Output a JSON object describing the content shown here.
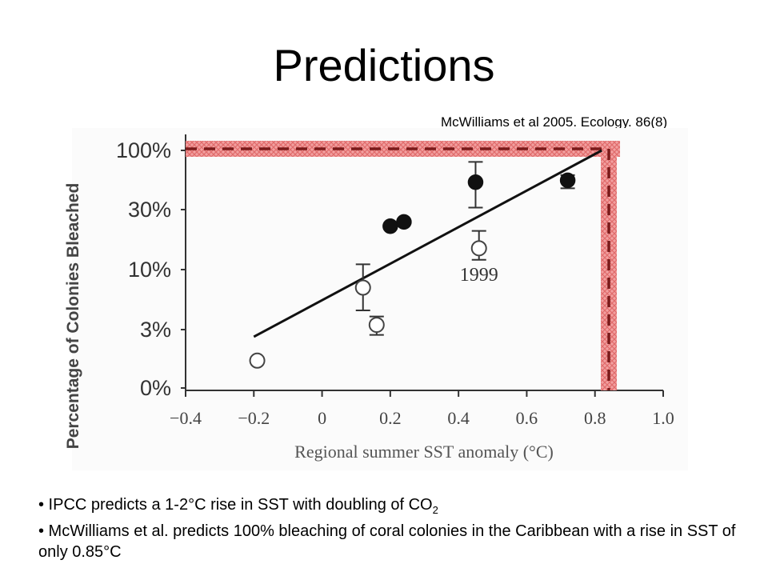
{
  "slide": {
    "title": "Predictions",
    "citation": "McWilliams et al 2005. Ecology. 86(8)",
    "bullets": [
      {
        "text": "• IPCC predicts a 1-2°C rise in SST with doubling of CO",
        "sub": "2"
      },
      {
        "text": "• McWilliams et al. predicts 100% bleaching of coral colonies in the Caribbean with a rise in SST of only 0.85°C"
      }
    ]
  },
  "chart_data": {
    "type": "scatter",
    "xlabel": "Regional summer SST anomaly (°C)",
    "ylabel": "Percentage of Colonies Bleached",
    "xlim": [
      -0.4,
      1.0
    ],
    "x_ticks": [
      -0.4,
      -0.2,
      0,
      0.2,
      0.4,
      0.6,
      0.8,
      1.0
    ],
    "x_tick_labels": [
      "−0.4",
      "−0.2",
      "0",
      "0.2",
      "0.4",
      "0.6",
      "0.8",
      "1.0"
    ],
    "y_tick_labels": [
      "100%",
      "30%",
      "10%",
      "3%",
      "0%"
    ],
    "y_scale": "log",
    "series": [
      {
        "marker": "filled-circle",
        "points": [
          {
            "x": 0.2,
            "y": 23
          },
          {
            "x": 0.24,
            "y": 25
          },
          {
            "x": 0.45,
            "y": 54,
            "err_low": 33,
            "err_high": 80
          },
          {
            "x": 0.72,
            "y": 56,
            "err_low": 48,
            "err_high": 62
          }
        ]
      },
      {
        "marker": "open-circle",
        "points": [
          {
            "x": -0.19,
            "y": 1.7
          },
          {
            "x": 0.12,
            "y": 7.0,
            "err_low": 4.5,
            "err_high": 11
          },
          {
            "x": 0.16,
            "y": 3.4,
            "err_low": 2.8,
            "err_high": 4.0
          },
          {
            "x": 0.46,
            "y": 15,
            "err_low": 12,
            "err_high": 21
          }
        ]
      }
    ],
    "trend_line": {
      "x": [
        -0.2,
        0.82
      ],
      "y": [
        2.7,
        100
      ]
    },
    "annotations": [
      {
        "text": "1999",
        "x": 0.46,
        "y": 8.0
      }
    ],
    "highlight": {
      "x": 0.85,
      "y": 100,
      "color": "#e06b6b",
      "dash_color": "#7a1a1a"
    }
  }
}
